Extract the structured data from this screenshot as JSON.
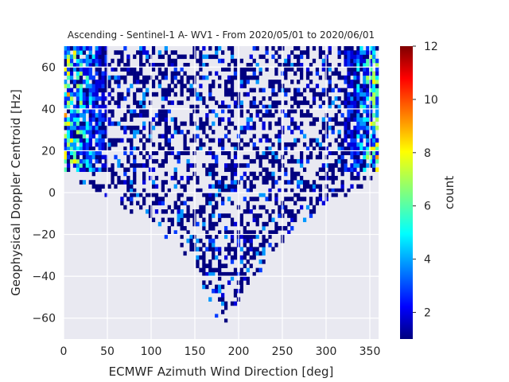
{
  "chart_data": {
    "type": "heatmap",
    "title": "Ascending - Sentinel-1 A- WV1 - From 2020/05/01 to 2020/06/01",
    "xlabel": "ECMWF Azimuth Wind Direction [deg]",
    "ylabel": "Geophysical Doppler Centroid [Hz]",
    "xlim": [
      0,
      360
    ],
    "ylim": [
      -70,
      70
    ],
    "xticks": [
      0,
      50,
      100,
      150,
      200,
      250,
      300,
      350
    ],
    "yticks": [
      -60,
      -40,
      -20,
      0,
      20,
      40,
      60
    ],
    "bin_size": {
      "x": 3.6,
      "y": 2
    },
    "grid": true,
    "colormap": "jet",
    "colorbar": {
      "label": "count",
      "range": [
        1,
        12
      ],
      "ticks": [
        2,
        4,
        6,
        8,
        10,
        12
      ]
    },
    "density_description": {
      "high_count_regions": [
        {
          "x_range": [
            0,
            50
          ],
          "y_range": [
            10,
            70
          ],
          "typical_count": [
            3,
            9
          ]
        },
        {
          "x_range": [
            320,
            360
          ],
          "y_range": [
            10,
            70
          ],
          "typical_count": [
            3,
            8
          ]
        }
      ],
      "lower_envelope": [
        {
          "x": 0,
          "y_min": 8
        },
        {
          "x": 60,
          "y_min": -5
        },
        {
          "x": 100,
          "y_min": -15
        },
        {
          "x": 150,
          "y_min": -35
        },
        {
          "x": 180,
          "y_min": -65
        },
        {
          "x": 210,
          "y_min": -45
        },
        {
          "x": 260,
          "y_min": -20
        },
        {
          "x": 300,
          "y_min": -5
        },
        {
          "x": 360,
          "y_min": 5
        }
      ]
    }
  },
  "colors": {
    "background": "#e9e9f1",
    "grid": "#ffffff",
    "text": "#262626"
  }
}
